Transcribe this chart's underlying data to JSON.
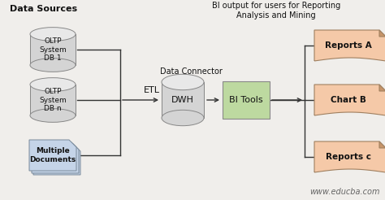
{
  "bg_color": "#f0eeeb",
  "title_text": "Data Sources",
  "bi_output_text": "BI output for users for Reporting\nAnalysis and Mining",
  "etl_label": "ETL",
  "data_connector_label": "Data Connector",
  "dwh_label": "DWH",
  "bi_tools_label": "BI Tools",
  "outputs": [
    "Reports A",
    "Chart B",
    "Reports c"
  ],
  "db_label1": "OLTP\nSystem\nDB 1",
  "db_label2": "OLTP\nSystem\nDB n",
  "doc_label": "Multiple\nDocuments",
  "watermark": "www.educba.com",
  "cyl_body_color": "#d4d4d4",
  "cyl_top_color": "#e8e8e8",
  "cyl_edge_color": "#888888",
  "bi_tools_color": "#bdd9a0",
  "bi_tools_edge": "#888888",
  "output_box_color": "#f5c9a8",
  "output_box_edge": "#a08060",
  "doc_color": "#c5d4e8",
  "doc_edge": "#778899",
  "line_color": "#333333",
  "text_color": "#111111",
  "watermark_color": "#666666"
}
